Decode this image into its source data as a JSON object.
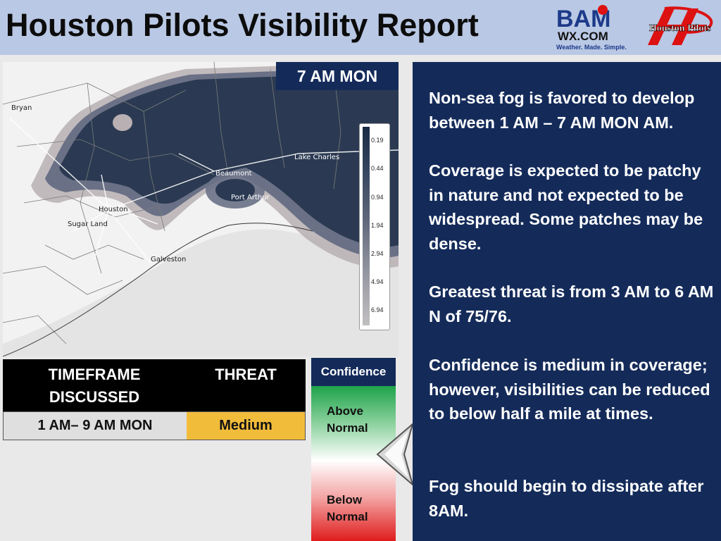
{
  "header": {
    "title": "Houston Pilots Visibility Report",
    "bam_logo": {
      "top": "BAM",
      "middle": "WX.COM",
      "tagline": "Weather. Made. Simple."
    },
    "hp_logo": {
      "text": "Houston Pilots"
    }
  },
  "map": {
    "time_label": "7 AM MON",
    "cities": [
      "Bryan",
      "Houston",
      "Sugar Land",
      "Galveston",
      "Beaumont",
      "Port Arthur",
      "Lake Charles"
    ],
    "legend_values": [
      "0.19",
      "0.44",
      "0.94",
      "1.94",
      "2.94",
      "4.94",
      "6.94"
    ]
  },
  "threat_table": {
    "header_timeframe": "TIMEFRAME DISCUSSED",
    "header_threat": "THREAT",
    "timeframe": "1 AM– 9 AM MON",
    "threat": "Medium"
  },
  "confidence": {
    "title": "Confidence",
    "above": "Above Normal",
    "below": "Below Normal"
  },
  "panel": {
    "p1": "Non-sea fog is favored to develop between 1 AM – 7 AM MON AM.",
    "p2": "Coverage is expected to be patchy in nature and not expected to be widespread. Some patches may be dense.",
    "p3": "Greatest threat is from 3 AM to 6 AM N of 75/76.",
    "p4": "Confidence is medium in coverage; however, visibilities can be reduced to below half a mile at times.",
    "p5": "Fog should begin to dissipate after 8AM."
  },
  "colors": {
    "header_bg": "#b9c8e4",
    "panel_bg": "#142b5a",
    "fog_dark": "#2b3a52",
    "threat_medium": "#f2bc3b"
  }
}
